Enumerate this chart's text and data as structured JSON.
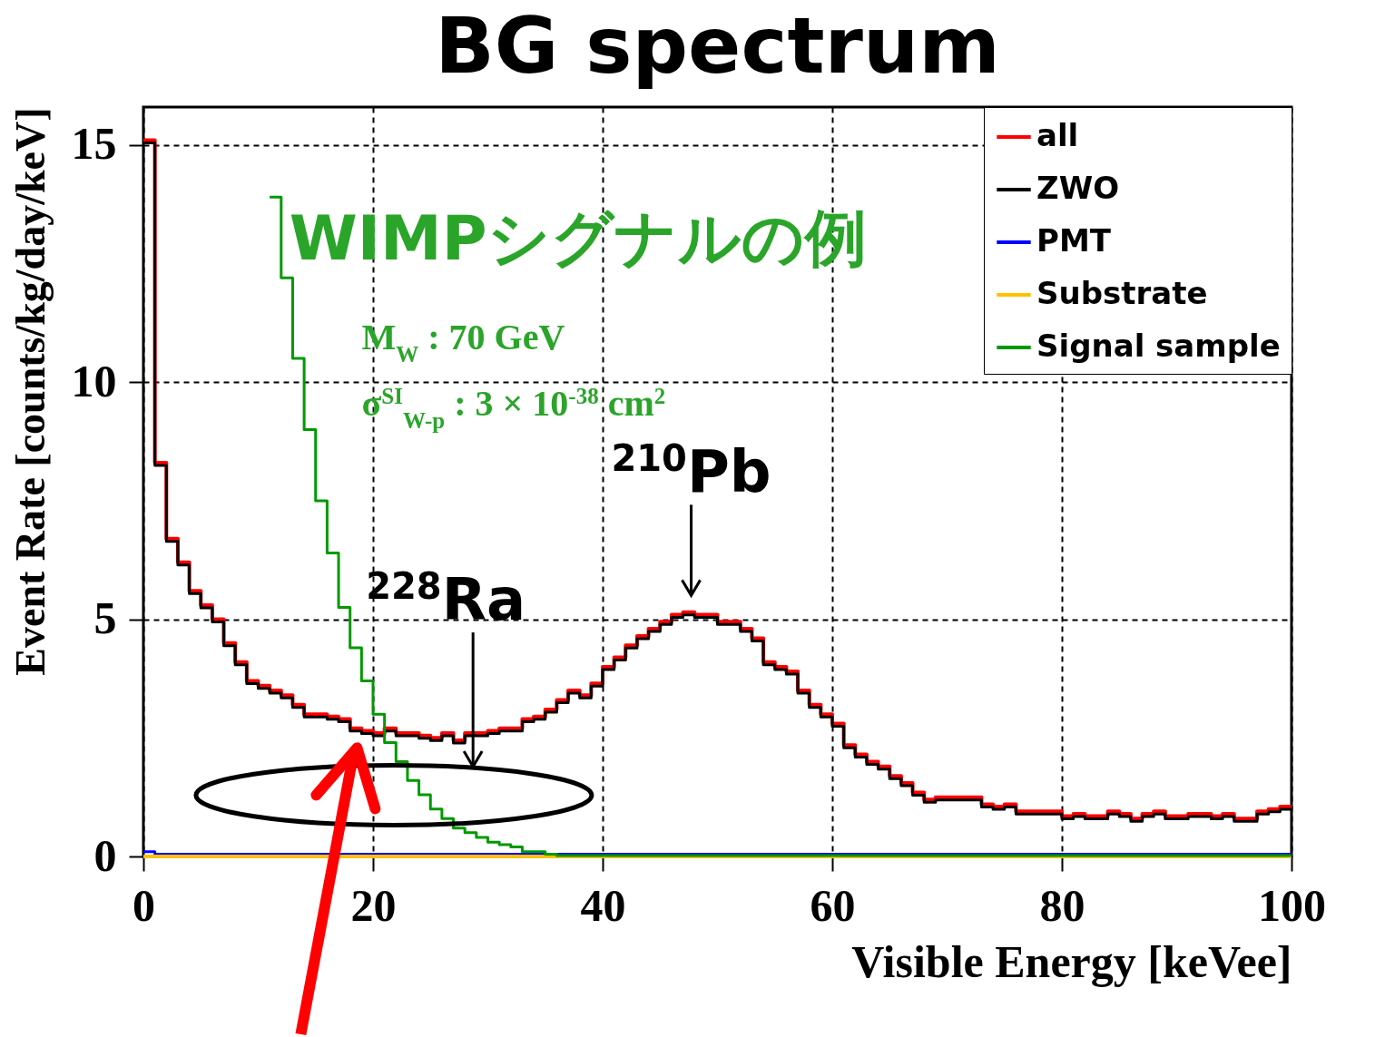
{
  "chart_data": {
    "type": "histogram",
    "title": "BG spectrum",
    "xlabel": "Visible Energy [keVee]",
    "ylabel": "Event Rate [counts/kg/day/keV]",
    "bins": [
      0,
      1,
      2,
      3,
      4,
      5,
      6,
      7,
      8,
      9,
      10,
      11,
      12,
      13,
      14,
      15,
      16,
      17,
      18,
      19,
      20,
      21,
      22,
      23,
      24,
      25,
      26,
      27,
      28,
      29,
      30,
      31,
      32,
      33,
      34,
      35,
      36,
      37,
      38,
      39,
      40,
      41,
      42,
      43,
      44,
      45,
      46,
      47,
      48,
      49,
      50,
      51,
      52,
      53,
      54,
      55,
      56,
      57,
      58,
      59,
      60,
      61,
      62,
      63,
      64,
      65,
      66,
      67,
      68,
      69,
      70,
      71,
      72,
      73,
      74,
      75,
      76,
      77,
      78,
      79,
      80,
      81,
      82,
      83,
      84,
      85,
      86,
      87,
      88,
      89,
      90,
      91,
      92,
      93,
      94,
      95,
      96,
      97,
      98,
      99,
      100
    ],
    "series": [
      {
        "name": "all",
        "color": "#ff0000",
        "values": [
          15.1,
          8.3,
          6.7,
          6.2,
          5.6,
          5.3,
          5.0,
          4.5,
          4.1,
          3.7,
          3.6,
          3.5,
          3.4,
          3.2,
          3.0,
          3.0,
          2.95,
          2.9,
          2.7,
          2.65,
          2.6,
          2.7,
          2.6,
          2.6,
          2.55,
          2.5,
          2.6,
          2.45,
          2.6,
          2.6,
          2.65,
          2.7,
          2.7,
          2.9,
          2.95,
          3.1,
          3.3,
          3.5,
          3.4,
          3.65,
          4.0,
          4.2,
          4.45,
          4.65,
          4.8,
          4.95,
          5.1,
          5.15,
          5.1,
          5.1,
          4.95,
          4.95,
          4.8,
          4.6,
          4.1,
          4.0,
          3.9,
          3.5,
          3.2,
          3.0,
          2.8,
          2.35,
          2.15,
          2.0,
          1.9,
          1.7,
          1.55,
          1.35,
          1.2,
          1.25,
          1.25,
          1.25,
          1.25,
          1.1,
          1.05,
          1.1,
          0.95,
          0.95,
          0.95,
          0.95,
          0.85,
          0.9,
          0.85,
          0.85,
          0.95,
          0.9,
          0.8,
          0.9,
          0.95,
          0.85,
          0.85,
          0.9,
          0.9,
          0.85,
          0.9,
          0.8,
          0.8,
          0.95,
          1.0,
          1.05
        ]
      },
      {
        "name": "ZWO",
        "color": "#000000",
        "values": [
          15.1,
          8.3,
          6.7,
          6.2,
          5.6,
          5.3,
          5.0,
          4.5,
          4.1,
          3.7,
          3.6,
          3.5,
          3.4,
          3.2,
          3.0,
          3.0,
          2.95,
          2.9,
          2.7,
          2.65,
          2.6,
          2.7,
          2.6,
          2.6,
          2.55,
          2.5,
          2.6,
          2.45,
          2.6,
          2.6,
          2.65,
          2.7,
          2.7,
          2.9,
          2.95,
          3.1,
          3.3,
          3.5,
          3.4,
          3.65,
          4.0,
          4.2,
          4.45,
          4.65,
          4.8,
          4.95,
          5.1,
          5.15,
          5.1,
          5.1,
          4.95,
          4.95,
          4.8,
          4.6,
          4.1,
          4.0,
          3.9,
          3.5,
          3.2,
          3.0,
          2.8,
          2.35,
          2.15,
          2.0,
          1.9,
          1.7,
          1.55,
          1.35,
          1.2,
          1.25,
          1.25,
          1.25,
          1.25,
          1.1,
          1.05,
          1.1,
          0.95,
          0.95,
          0.95,
          0.95,
          0.85,
          0.9,
          0.85,
          0.85,
          0.95,
          0.9,
          0.8,
          0.9,
          0.95,
          0.85,
          0.85,
          0.9,
          0.9,
          0.85,
          0.9,
          0.8,
          0.8,
          0.95,
          1.0,
          1.05
        ]
      },
      {
        "name": "PMT",
        "color": "#0000ff",
        "values": [
          0.1,
          0.05,
          0.05,
          0.05,
          0.05,
          0.05,
          0.05,
          0.05,
          0.05,
          0.05,
          0.05,
          0.05,
          0.05,
          0.05,
          0.05,
          0.05,
          0.05,
          0.05,
          0.05,
          0.05,
          0.05,
          0.05,
          0.05,
          0.05,
          0.05,
          0.05,
          0.05,
          0.05,
          0.05,
          0.05,
          0.05,
          0.05,
          0.05,
          0.05,
          0.05,
          0.05,
          0.05,
          0.05,
          0.05,
          0.05,
          0.05,
          0.05,
          0.05,
          0.05,
          0.05,
          0.05,
          0.05,
          0.05,
          0.05,
          0.05,
          0.05,
          0.05,
          0.05,
          0.05,
          0.05,
          0.05,
          0.05,
          0.05,
          0.05,
          0.05,
          0.05,
          0.05,
          0.05,
          0.05,
          0.05,
          0.05,
          0.05,
          0.05,
          0.05,
          0.05,
          0.05,
          0.05,
          0.05,
          0.05,
          0.05,
          0.05,
          0.05,
          0.05,
          0.05,
          0.05,
          0.05,
          0.05,
          0.05,
          0.05,
          0.05,
          0.05,
          0.05,
          0.05,
          0.05,
          0.05,
          0.05,
          0.05,
          0.05,
          0.05,
          0.05,
          0.05,
          0.05,
          0.05,
          0.05,
          0.05
        ]
      },
      {
        "name": "Substrate",
        "color": "#ffc000",
        "values": [
          0,
          0,
          0,
          0,
          0,
          0,
          0,
          0,
          0,
          0,
          0,
          0,
          0,
          0,
          0,
          0,
          0,
          0,
          0,
          0,
          0,
          0,
          0,
          0,
          0,
          0,
          0,
          0,
          0,
          0,
          0,
          0,
          0,
          0,
          0,
          0,
          0,
          0,
          0,
          0,
          0,
          0,
          0,
          0,
          0,
          0,
          0,
          0,
          0,
          0,
          0,
          0,
          0,
          0,
          0,
          0,
          0,
          0,
          0,
          0,
          0,
          0,
          0,
          0,
          0,
          0,
          0,
          0,
          0,
          0,
          0,
          0,
          0,
          0,
          0,
          0,
          0,
          0,
          0,
          0,
          0,
          0,
          0,
          0,
          0,
          0,
          0,
          0,
          0,
          0,
          0,
          0,
          0,
          0,
          0,
          0,
          0,
          0,
          0,
          0
        ]
      },
      {
        "name": "Signal sample",
        "color": "#009900",
        "type": "step",
        "x": [
          11,
          12,
          13,
          14,
          15,
          16,
          17,
          18,
          19,
          20,
          21,
          22,
          23,
          24,
          25,
          26,
          27,
          28,
          29,
          30,
          31,
          32,
          33,
          34,
          35,
          36,
          37,
          38,
          39,
          40,
          41,
          42,
          43,
          44,
          45,
          46,
          47,
          48,
          49,
          50,
          51,
          52,
          53,
          54,
          55,
          56,
          57,
          58,
          59,
          60,
          61,
          62,
          63,
          64,
          65,
          66,
          67,
          68,
          69,
          70,
          71,
          72,
          73,
          74,
          75,
          76,
          77,
          78,
          79,
          80,
          81,
          82,
          83,
          84,
          85,
          86,
          87,
          88,
          89,
          90,
          91,
          92,
          93,
          94,
          95,
          96,
          97,
          98,
          99,
          100
        ],
        "values": [
          13.9,
          12.2,
          10.5,
          9.0,
          7.5,
          6.4,
          5.25,
          4.4,
          3.7,
          3.0,
          2.4,
          2.0,
          1.6,
          1.3,
          1.0,
          0.8,
          0.6,
          0.5,
          0.4,
          0.3,
          0.25,
          0.2,
          0.1,
          0.1,
          0.05,
          0.02,
          0.02,
          0.02,
          0.02,
          0.02,
          0.02,
          0.02,
          0.02,
          0.02,
          0.02,
          0.02,
          0.02,
          0.02,
          0.02,
          0.02,
          0.02,
          0.02,
          0.02,
          0.02,
          0.02,
          0.02,
          0.02,
          0.02,
          0.02,
          0.02,
          0.02,
          0.02,
          0.02,
          0.02,
          0.02,
          0.02,
          0.02,
          0.02,
          0.02,
          0.02,
          0.02,
          0.02,
          0.02,
          0.02,
          0.02,
          0.02,
          0.02,
          0.02,
          0.02,
          0.02,
          0.02,
          0.02,
          0.02,
          0.02,
          0.02,
          0.02,
          0.02,
          0.02,
          0.02,
          0.02,
          0.02,
          0.02,
          0.02,
          0.02,
          0.02,
          0.02,
          0.02,
          0.02,
          0.02,
          0.02
        ]
      }
    ],
    "xlim": [
      0,
      100
    ],
    "xticks": [
      0,
      20,
      40,
      60,
      80,
      100
    ],
    "ylim": [
      0,
      15.8
    ],
    "yticks": [
      0,
      5,
      10,
      15
    ],
    "grid": true,
    "legend": "top right",
    "annotations": [
      "WIMPシグナルの例",
      "M$_{W}$ : 70 GeV",
      "σ$^{SI}$$_{W-p}$ : 3 × 10$^{-38}$ cm$^{2}$",
      {
        "text": "$^{210}$Pb",
        "x": 48.5,
        "y": 5.1
      },
      {
        "text": "$^{228}$Ra",
        "x": 29.5,
        "y": 2.6
      }
    ]
  }
}
